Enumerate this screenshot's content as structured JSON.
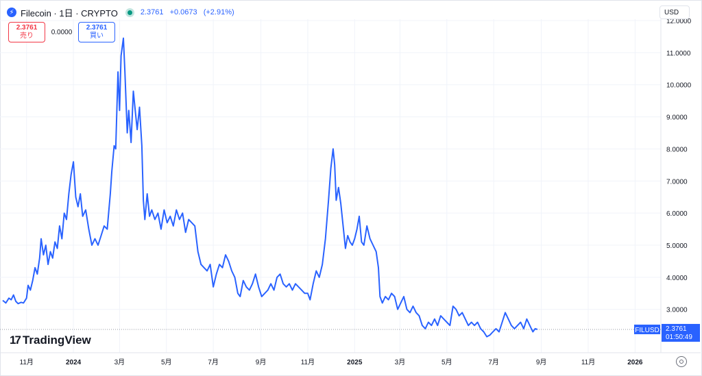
{
  "header": {
    "logo_glyph": "⚡",
    "symbol": "Filecoin · 1日 · CRYPTO",
    "price": "2.3761",
    "change": "+0.0673",
    "change_pct": "(+2.91%)"
  },
  "bidask": {
    "sell_value": "2.3761",
    "sell_label": "売り",
    "spread": "0.0000",
    "buy_value": "2.3761",
    "buy_label": "買い"
  },
  "currency": "USD",
  "watermark": "TradingView",
  "colors": {
    "line": "#2962ff",
    "grid": "#f0f3fa",
    "axis_text": "#131722",
    "badge": "#2962ff"
  },
  "chart_data": {
    "type": "line",
    "symbol_label": "FILUSD",
    "last_price_label": "2.3761",
    "countdown": "01:50:49",
    "last_price": 2.3761,
    "ylim": [
      1.65,
      12.0
    ],
    "yticks": [
      {
        "value": 12.0,
        "label": "12.0000"
      },
      {
        "value": 11.0,
        "label": "11.0000"
      },
      {
        "value": 10.0,
        "label": "10.0000"
      },
      {
        "value": 9.0,
        "label": "9.0000"
      },
      {
        "value": 8.0,
        "label": "8.0000"
      },
      {
        "value": 7.0,
        "label": "7.0000"
      },
      {
        "value": 6.0,
        "label": "6.0000"
      },
      {
        "value": 5.0,
        "label": "5.0000"
      },
      {
        "value": 4.0,
        "label": "4.0000"
      },
      {
        "value": 3.0,
        "label": "3.0000"
      }
    ],
    "xlim": [
      "2023-10-01",
      "2026-01-31"
    ],
    "xticks": [
      {
        "date": "2023-11-01",
        "label": "11月",
        "bold": false
      },
      {
        "date": "2024-01-01",
        "label": "2024",
        "bold": true
      },
      {
        "date": "2024-03-01",
        "label": "3月",
        "bold": false
      },
      {
        "date": "2024-05-01",
        "label": "5月",
        "bold": false
      },
      {
        "date": "2024-07-01",
        "label": "7月",
        "bold": false
      },
      {
        "date": "2024-09-01",
        "label": "9月",
        "bold": false
      },
      {
        "date": "2024-11-01",
        "label": "11月",
        "bold": false
      },
      {
        "date": "2025-01-01",
        "label": "2025",
        "bold": true
      },
      {
        "date": "2025-03-01",
        "label": "3月",
        "bold": false
      },
      {
        "date": "2025-05-01",
        "label": "5月",
        "bold": false
      },
      {
        "date": "2025-07-01",
        "label": "7月",
        "bold": false
      },
      {
        "date": "2025-09-01",
        "label": "9月",
        "bold": false
      },
      {
        "date": "2025-11-01",
        "label": "11月",
        "bold": false
      },
      {
        "date": "2026-01-01",
        "label": "2026",
        "bold": true
      }
    ],
    "series": [
      {
        "points": [
          [
            "2023-10-01",
            3.28
          ],
          [
            "2023-10-05",
            3.2
          ],
          [
            "2023-10-09",
            3.35
          ],
          [
            "2023-10-12",
            3.3
          ],
          [
            "2023-10-15",
            3.45
          ],
          [
            "2023-10-18",
            3.25
          ],
          [
            "2023-10-21",
            3.18
          ],
          [
            "2023-10-25",
            3.22
          ],
          [
            "2023-10-28",
            3.2
          ],
          [
            "2023-11-01",
            3.35
          ],
          [
            "2023-11-03",
            3.75
          ],
          [
            "2023-11-06",
            3.6
          ],
          [
            "2023-11-09",
            3.9
          ],
          [
            "2023-11-12",
            4.3
          ],
          [
            "2023-11-15",
            4.1
          ],
          [
            "2023-11-18",
            4.6
          ],
          [
            "2023-11-20",
            5.2
          ],
          [
            "2023-11-23",
            4.7
          ],
          [
            "2023-11-26",
            5.0
          ],
          [
            "2023-11-29",
            4.4
          ],
          [
            "2023-12-02",
            4.8
          ],
          [
            "2023-12-05",
            4.6
          ],
          [
            "2023-12-08",
            5.1
          ],
          [
            "2023-12-11",
            4.9
          ],
          [
            "2023-12-14",
            5.6
          ],
          [
            "2023-12-17",
            5.2
          ],
          [
            "2023-12-20",
            6.0
          ],
          [
            "2023-12-23",
            5.8
          ],
          [
            "2023-12-26",
            6.6
          ],
          [
            "2023-12-29",
            7.2
          ],
          [
            "2024-01-01",
            7.6
          ],
          [
            "2024-01-04",
            6.5
          ],
          [
            "2024-01-07",
            6.2
          ],
          [
            "2024-01-10",
            6.6
          ],
          [
            "2024-01-13",
            5.9
          ],
          [
            "2024-01-17",
            6.1
          ],
          [
            "2024-01-21",
            5.5
          ],
          [
            "2024-01-25",
            5.0
          ],
          [
            "2024-01-29",
            5.2
          ],
          [
            "2024-02-02",
            5.0
          ],
          [
            "2024-02-06",
            5.3
          ],
          [
            "2024-02-10",
            5.6
          ],
          [
            "2024-02-14",
            5.5
          ],
          [
            "2024-02-18",
            6.6
          ],
          [
            "2024-02-20",
            7.3
          ],
          [
            "2024-02-23",
            8.1
          ],
          [
            "2024-02-25",
            8.0
          ],
          [
            "2024-02-28",
            10.4
          ],
          [
            "2024-03-01",
            9.2
          ],
          [
            "2024-03-03",
            10.9
          ],
          [
            "2024-03-06",
            11.45
          ],
          [
            "2024-03-08",
            10.4
          ],
          [
            "2024-03-11",
            8.5
          ],
          [
            "2024-03-13",
            9.2
          ],
          [
            "2024-03-16",
            8.2
          ],
          [
            "2024-03-19",
            9.8
          ],
          [
            "2024-03-21",
            9.3
          ],
          [
            "2024-03-24",
            8.6
          ],
          [
            "2024-03-27",
            9.3
          ],
          [
            "2024-03-30",
            8.1
          ],
          [
            "2024-04-01",
            6.4
          ],
          [
            "2024-04-03",
            5.8
          ],
          [
            "2024-04-06",
            6.6
          ],
          [
            "2024-04-09",
            5.9
          ],
          [
            "2024-04-12",
            6.1
          ],
          [
            "2024-04-16",
            5.8
          ],
          [
            "2024-04-20",
            6.0
          ],
          [
            "2024-04-24",
            5.5
          ],
          [
            "2024-04-28",
            6.1
          ],
          [
            "2024-05-02",
            5.7
          ],
          [
            "2024-05-06",
            5.9
          ],
          [
            "2024-05-10",
            5.6
          ],
          [
            "2024-05-14",
            6.1
          ],
          [
            "2024-05-18",
            5.8
          ],
          [
            "2024-05-22",
            6.0
          ],
          [
            "2024-05-26",
            5.4
          ],
          [
            "2024-05-30",
            5.8
          ],
          [
            "2024-06-03",
            5.7
          ],
          [
            "2024-06-07",
            5.6
          ],
          [
            "2024-06-11",
            4.8
          ],
          [
            "2024-06-15",
            4.4
          ],
          [
            "2024-06-19",
            4.3
          ],
          [
            "2024-06-23",
            4.2
          ],
          [
            "2024-06-27",
            4.4
          ],
          [
            "2024-07-01",
            3.7
          ],
          [
            "2024-07-05",
            4.1
          ],
          [
            "2024-07-09",
            4.4
          ],
          [
            "2024-07-13",
            4.3
          ],
          [
            "2024-07-17",
            4.7
          ],
          [
            "2024-07-21",
            4.5
          ],
          [
            "2024-07-25",
            4.2
          ],
          [
            "2024-07-29",
            4.0
          ],
          [
            "2024-08-02",
            3.5
          ],
          [
            "2024-08-05",
            3.4
          ],
          [
            "2024-08-09",
            3.9
          ],
          [
            "2024-08-13",
            3.7
          ],
          [
            "2024-08-17",
            3.6
          ],
          [
            "2024-08-21",
            3.8
          ],
          [
            "2024-08-25",
            4.1
          ],
          [
            "2024-08-29",
            3.7
          ],
          [
            "2024-09-02",
            3.4
          ],
          [
            "2024-09-06",
            3.5
          ],
          [
            "2024-09-10",
            3.6
          ],
          [
            "2024-09-14",
            3.8
          ],
          [
            "2024-09-18",
            3.6
          ],
          [
            "2024-09-22",
            4.0
          ],
          [
            "2024-09-26",
            4.1
          ],
          [
            "2024-09-30",
            3.8
          ],
          [
            "2024-10-04",
            3.7
          ],
          [
            "2024-10-08",
            3.8
          ],
          [
            "2024-10-12",
            3.6
          ],
          [
            "2024-10-16",
            3.8
          ],
          [
            "2024-10-20",
            3.7
          ],
          [
            "2024-10-24",
            3.6
          ],
          [
            "2024-10-28",
            3.5
          ],
          [
            "2024-11-01",
            3.5
          ],
          [
            "2024-11-04",
            3.3
          ],
          [
            "2024-11-08",
            3.8
          ],
          [
            "2024-11-12",
            4.2
          ],
          [
            "2024-11-16",
            4.0
          ],
          [
            "2024-11-20",
            4.4
          ],
          [
            "2024-11-24",
            5.2
          ],
          [
            "2024-11-28",
            6.4
          ],
          [
            "2024-12-01",
            7.4
          ],
          [
            "2024-12-04",
            8.0
          ],
          [
            "2024-12-06",
            7.5
          ],
          [
            "2024-12-08",
            6.4
          ],
          [
            "2024-12-11",
            6.8
          ],
          [
            "2024-12-14",
            6.3
          ],
          [
            "2024-12-17",
            5.6
          ],
          [
            "2024-12-20",
            4.9
          ],
          [
            "2024-12-23",
            5.3
          ],
          [
            "2024-12-26",
            5.1
          ],
          [
            "2024-12-29",
            5.0
          ],
          [
            "2025-01-01",
            5.2
          ],
          [
            "2025-01-04",
            5.5
          ],
          [
            "2025-01-07",
            5.9
          ],
          [
            "2025-01-10",
            5.1
          ],
          [
            "2025-01-13",
            5.0
          ],
          [
            "2025-01-17",
            5.6
          ],
          [
            "2025-01-21",
            5.2
          ],
          [
            "2025-01-25",
            5.0
          ],
          [
            "2025-01-29",
            4.8
          ],
          [
            "2025-02-01",
            4.3
          ],
          [
            "2025-02-03",
            3.4
          ],
          [
            "2025-02-06",
            3.2
          ],
          [
            "2025-02-10",
            3.4
          ],
          [
            "2025-02-14",
            3.3
          ],
          [
            "2025-02-18",
            3.5
          ],
          [
            "2025-02-22",
            3.4
          ],
          [
            "2025-02-26",
            3.0
          ],
          [
            "2025-03-02",
            3.2
          ],
          [
            "2025-03-06",
            3.4
          ],
          [
            "2025-03-10",
            3.0
          ],
          [
            "2025-03-14",
            2.9
          ],
          [
            "2025-03-18",
            3.1
          ],
          [
            "2025-03-22",
            2.9
          ],
          [
            "2025-03-26",
            2.8
          ],
          [
            "2025-03-30",
            2.5
          ],
          [
            "2025-04-03",
            2.4
          ],
          [
            "2025-04-07",
            2.6
          ],
          [
            "2025-04-11",
            2.5
          ],
          [
            "2025-04-15",
            2.7
          ],
          [
            "2025-04-19",
            2.5
          ],
          [
            "2025-04-23",
            2.8
          ],
          [
            "2025-04-27",
            2.7
          ],
          [
            "2025-05-01",
            2.6
          ],
          [
            "2025-05-05",
            2.5
          ],
          [
            "2025-05-09",
            3.1
          ],
          [
            "2025-05-13",
            3.0
          ],
          [
            "2025-05-17",
            2.8
          ],
          [
            "2025-05-21",
            2.9
          ],
          [
            "2025-05-25",
            2.7
          ],
          [
            "2025-05-29",
            2.5
          ],
          [
            "2025-06-02",
            2.6
          ],
          [
            "2025-06-06",
            2.5
          ],
          [
            "2025-06-10",
            2.6
          ],
          [
            "2025-06-14",
            2.4
          ],
          [
            "2025-06-18",
            2.3
          ],
          [
            "2025-06-22",
            2.15
          ],
          [
            "2025-06-26",
            2.2
          ],
          [
            "2025-06-30",
            2.3
          ],
          [
            "2025-07-04",
            2.4
          ],
          [
            "2025-07-08",
            2.3
          ],
          [
            "2025-07-12",
            2.6
          ],
          [
            "2025-07-16",
            2.9
          ],
          [
            "2025-07-20",
            2.7
          ],
          [
            "2025-07-24",
            2.5
          ],
          [
            "2025-07-28",
            2.4
          ],
          [
            "2025-08-01",
            2.5
          ],
          [
            "2025-08-05",
            2.6
          ],
          [
            "2025-08-09",
            2.4
          ],
          [
            "2025-08-13",
            2.7
          ],
          [
            "2025-08-17",
            2.5
          ],
          [
            "2025-08-21",
            2.3
          ],
          [
            "2025-08-24",
            2.4
          ],
          [
            "2025-08-27",
            2.3761
          ]
        ]
      }
    ]
  }
}
